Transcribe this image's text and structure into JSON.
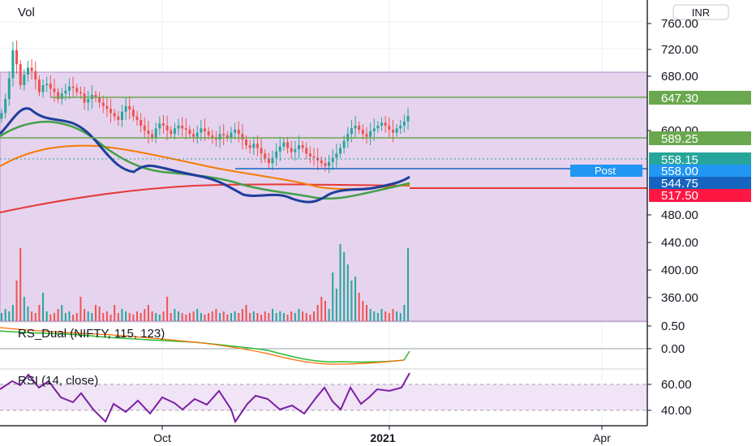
{
  "header": {
    "volume_label": "Vol",
    "currency_button": "INR"
  },
  "price_axis": {
    "ticks": [
      "760.00",
      "720.00",
      "680.00",
      "600.00",
      "480.00",
      "440.00",
      "400.00",
      "360.00"
    ]
  },
  "price_labels": {
    "level_647": "647.30",
    "level_589": "589.25",
    "last_price": "558.15",
    "post_price": "558.00",
    "ma_value": "544.75",
    "support": "517.50",
    "post_tag": "Post"
  },
  "time_axis": {
    "ticks": [
      "Oct",
      "2021",
      "Apr"
    ]
  },
  "panes": {
    "rs": {
      "title": "RS_Dual (NIFTY, 115, 123)",
      "ticks": [
        "0.50",
        "0.00"
      ]
    },
    "rsi": {
      "title": "RSI (14, close)",
      "ticks": [
        "60.00",
        "40.00"
      ]
    }
  },
  "colors": {
    "zone_fill": "#e6d3ee",
    "zone_border": "#b98bc9",
    "up": "#26a69a",
    "down": "#ef5350",
    "ma_fast": "#1e3f9c",
    "ma_mid": "#43a047",
    "ma_slow": "#f57c00",
    "ma_long": "#e53935",
    "line_647": "#6aa84f",
    "line_589": "#6aa84f",
    "line_558": "#1565c0",
    "line_517": "#e53935",
    "tag_647": "#6aa84f",
    "tag_589": "#6aa84f",
    "tag_558_15": "#26a69a",
    "tag_558": "#2196f3",
    "tag_544": "#1565c0",
    "tag_517": "#ff1744",
    "rsi_line": "#7b1fa2",
    "rs_green": "#2eb82e",
    "rs_orange": "#ff6d00"
  },
  "chart_data": {
    "type": "candlestick",
    "price_range": [
      330,
      790
    ],
    "horizontal_levels": [
      {
        "price": 647.3,
        "label": "647.30"
      },
      {
        "price": 589.25,
        "label": "589.25"
      },
      {
        "price": 558.0,
        "label": "558.00"
      },
      {
        "price": 517.5,
        "label": "517.50"
      }
    ],
    "zone": {
      "from": 330,
      "to": 686
    },
    "candles_close": [
      570,
      590,
      620,
      660,
      640,
      610,
      625,
      635,
      630,
      618,
      600,
      610,
      612,
      605,
      600,
      590,
      598,
      602,
      608,
      606,
      600,
      598,
      585,
      590,
      596,
      592,
      585,
      580,
      576,
      570,
      565,
      560,
      572,
      580,
      575,
      565,
      560,
      552,
      545,
      540,
      535,
      548,
      555,
      552,
      545,
      540,
      548,
      552,
      548,
      546,
      540,
      536,
      542,
      548,
      544,
      538,
      534,
      532,
      540,
      538,
      535,
      542,
      546,
      540,
      532,
      524,
      520,
      526,
      520,
      512,
      505,
      498,
      506,
      515,
      522,
      528,
      520,
      514,
      518,
      524,
      520,
      512,
      508,
      506,
      502,
      498,
      494,
      500,
      506,
      512,
      520,
      530,
      540,
      548,
      552,
      546,
      540,
      536,
      544,
      548,
      552,
      556,
      552,
      546,
      542,
      548,
      552,
      558,
      566
    ],
    "volume_rel": [
      0.1,
      0.15,
      0.12,
      0.2,
      0.5,
      0.9,
      0.3,
      0.18,
      0.12,
      0.1,
      0.2,
      0.35,
      0.12,
      0.08,
      0.1,
      0.15,
      0.2,
      0.1,
      0.12,
      0.08,
      0.1,
      0.3,
      0.15,
      0.12,
      0.1,
      0.2,
      0.18,
      0.1,
      0.12,
      0.08,
      0.2,
      0.1,
      0.15,
      0.12,
      0.1,
      0.08,
      0.12,
      0.1,
      0.15,
      0.2,
      0.12,
      0.1,
      0.08,
      0.12,
      0.3,
      0.1,
      0.15,
      0.12,
      0.1,
      0.08,
      0.1,
      0.12,
      0.15,
      0.1,
      0.08,
      0.1,
      0.12,
      0.15,
      0.1,
      0.12,
      0.08,
      0.1,
      0.12,
      0.1,
      0.15,
      0.2,
      0.1,
      0.12,
      0.1,
      0.08,
      0.12,
      0.1,
      0.15,
      0.1,
      0.12,
      0.1,
      0.08,
      0.12,
      0.1,
      0.15,
      0.12,
      0.1,
      0.08,
      0.12,
      0.2,
      0.3,
      0.25,
      0.15,
      0.6,
      0.4,
      0.95,
      0.85,
      0.7,
      0.5,
      0.55,
      0.35,
      0.25,
      0.2,
      0.15,
      0.12,
      0.1,
      0.15,
      0.12,
      0.1,
      0.15,
      0.12,
      0.1,
      0.2,
      0.9
    ]
  }
}
